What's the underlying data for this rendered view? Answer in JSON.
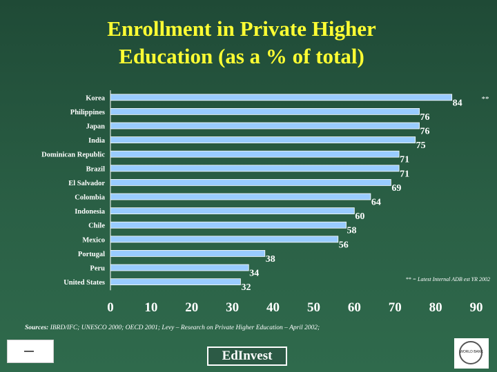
{
  "title_line1": "Enrollment in Private Higher",
  "title_line2": "Education (as a % of total)",
  "chart_data": {
    "type": "bar",
    "orientation": "horizontal",
    "categories": [
      "Korea",
      "Philippines",
      "Japan",
      "India",
      "Dominican Republic",
      "Brazil",
      "El Salvador",
      "Colombia",
      "Indonesia",
      "Chile",
      "Mexico",
      "Portugal",
      "Peru",
      "United States"
    ],
    "values": [
      84,
      76,
      76,
      75,
      71,
      71,
      69,
      64,
      60,
      58,
      56,
      38,
      34,
      32
    ],
    "value_labels": [
      "84",
      "76",
      "76",
      "75",
      "71",
      "71",
      "69",
      "64",
      "60",
      "58",
      "56",
      "38",
      "34",
      "32"
    ],
    "xlim": [
      0,
      90
    ],
    "xticks": [
      "0",
      "10",
      "20",
      "30",
      "40",
      "50",
      "60",
      "70",
      "80",
      "90"
    ],
    "grid": false,
    "bar_color": "#99ccff",
    "annotations": [
      "**",
      "** = Latest Internal ADB est YR 2002"
    ]
  },
  "source_label": "Sources:",
  "source_text": " IBRD/IFC; UNESCO 2000; OECD 2001; Levy – Research on Private Higher Education – April 2002;",
  "footer": {
    "edinvest_label": "EdInvest",
    "worldbank_label": "WORLD BANK"
  },
  "colors": {
    "background": "#2a5f45",
    "title": "#ffff33",
    "bar": "#99ccff",
    "text": "#ffffff"
  }
}
